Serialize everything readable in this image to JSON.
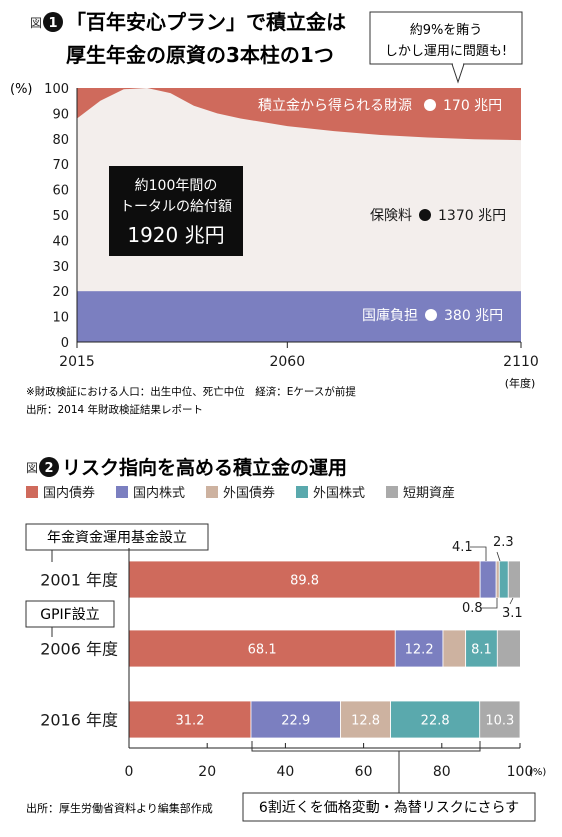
{
  "chart_data": [
    {
      "type": "area",
      "fig_label": "図",
      "fig_number": "1",
      "title_line1": "「百年安心プラン」で積立金は",
      "title_line2": "厚生年金の原資の3本柱の1つ",
      "callout": {
        "line1": "約9%を賄う",
        "line2": "しかし運用に問題も!"
      },
      "y_unit": "(%)",
      "x_unit": "(年度)",
      "ylim": [
        0,
        100
      ],
      "xlim": [
        2015,
        2110
      ],
      "y_ticks": [
        0,
        10,
        20,
        30,
        40,
        50,
        60,
        70,
        80,
        90,
        100
      ],
      "x_ticks": [
        2015,
        2060,
        2110
      ],
      "series": [
        {
          "name": "国庫負担",
          "amount": "380 兆円",
          "color": "#7b7fc0",
          "x": [
            2015,
            2110
          ],
          "y": [
            20,
            20
          ]
        },
        {
          "name": "保険料",
          "amount": "1370 兆円",
          "color": "#f3eeec",
          "x": [
            2015,
            2110
          ],
          "y": [
            80,
            80
          ]
        },
        {
          "name": "積立金から得られる財源",
          "amount": "170 兆円",
          "color": "#cf6a5c",
          "x": [
            2015,
            2020,
            2025,
            2030,
            2035,
            2040,
            2045,
            2050,
            2055,
            2060,
            2070,
            2080,
            2090,
            2100,
            2110
          ],
          "upper_boundary": [
            88,
            95,
            99.5,
            100,
            98,
            93,
            90,
            88,
            86.5,
            85,
            83,
            81.5,
            80.5,
            79.8,
            79.5
          ]
        }
      ],
      "total_box": {
        "line1": "約100年間の",
        "line2": "トータルの給付額",
        "value": "1920 兆円"
      },
      "footnote": "※財政検証における人口：出生中位、死亡中位　経済：Eケースが前提",
      "source": "出所：2014 年財政検証結果レポート"
    },
    {
      "type": "bar",
      "orientation": "horizontal",
      "stacked": true,
      "fig_label": "図",
      "fig_number": "2",
      "title": "リスク指向を高める積立金の運用",
      "categories": [
        "2001 年度",
        "2006 年度",
        "2016 年度"
      ],
      "x_unit": "(%)",
      "xlim": [
        0,
        100
      ],
      "x_ticks": [
        0,
        20,
        40,
        60,
        80,
        100
      ],
      "series": [
        {
          "name": "国内債券",
          "color": "#cf6a5c",
          "values": [
            89.8,
            68.1,
            31.2
          ]
        },
        {
          "name": "国内株式",
          "color": "#7b7fc0",
          "values": [
            4.1,
            12.2,
            22.9
          ]
        },
        {
          "name": "外国債券",
          "color": "#cdb2a0",
          "values": [
            0.8,
            5.8,
            12.8
          ]
        },
        {
          "name": "外国株式",
          "color": "#5aa9ad",
          "values": [
            2.3,
            8.1,
            22.8
          ]
        },
        {
          "name": "短期資産",
          "color": "#aaaaaa",
          "values": [
            3.1,
            5.9,
            10.3
          ]
        }
      ],
      "events": [
        "年金資金運用基金設立",
        "GPIF設立"
      ],
      "bracket_note": "6割近くを価格変動・為替リスクにさらす",
      "source": "出所：厚生労働省資料より編集部作成"
    }
  ]
}
